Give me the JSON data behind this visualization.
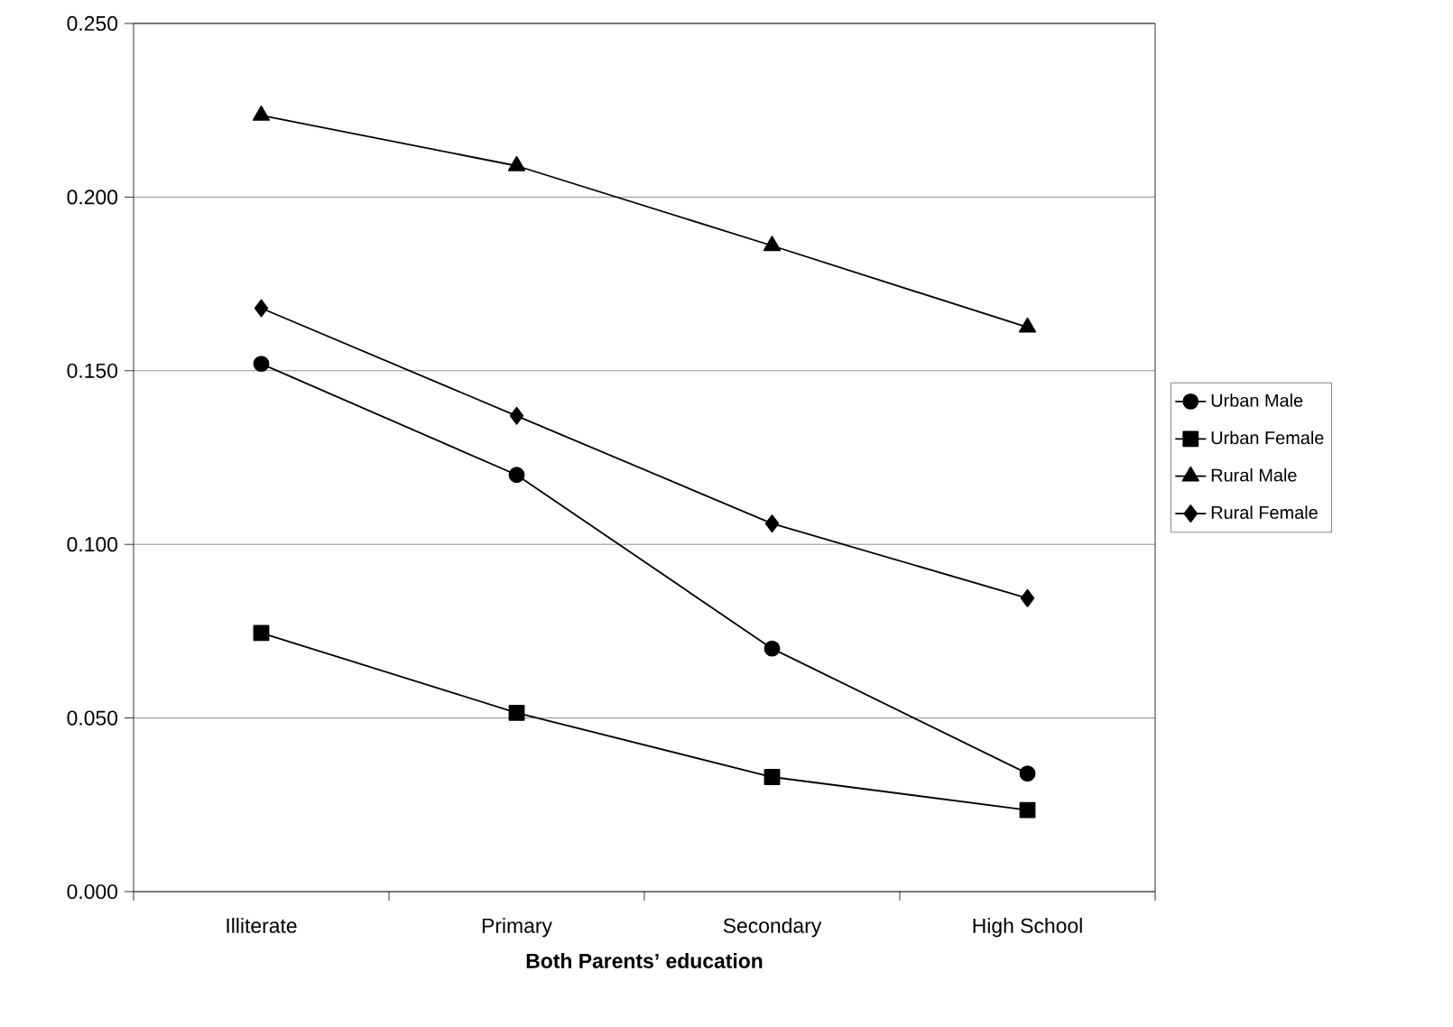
{
  "chart_data": {
    "type": "line",
    "xlabel": "Both Parents’ education",
    "categories": [
      "Illiterate",
      "Primary",
      "Secondary",
      "High School"
    ],
    "series": [
      {
        "name": "Urban Male",
        "color": "#000000",
        "marker": "circle",
        "values": [
          0.152,
          0.12,
          0.07,
          0.034
        ]
      },
      {
        "name": "Urban Female",
        "color": "#000000",
        "marker": "square",
        "values": [
          0.0745,
          0.0515,
          0.033,
          0.0235
        ]
      },
      {
        "name": "Rural Male",
        "color": "#000000",
        "marker": "triangle",
        "values": [
          0.2235,
          0.209,
          0.186,
          0.1625
        ]
      },
      {
        "name": "Rural Female",
        "color": "#000000",
        "marker": "diamond",
        "values": [
          0.168,
          0.137,
          0.106,
          0.0845
        ]
      }
    ],
    "ylim": [
      0,
      0.25
    ],
    "yticks": [
      {
        "value": 0,
        "label": "0.000"
      },
      {
        "value": 0.05,
        "label": "0.050"
      },
      {
        "value": 0.1,
        "label": "0.100"
      },
      {
        "value": 0.15,
        "label": "0.150"
      },
      {
        "value": 0.2,
        "label": "0.200"
      },
      {
        "value": 0.25,
        "label": "0.250"
      }
    ],
    "grid": "y",
    "legend": "right"
  }
}
